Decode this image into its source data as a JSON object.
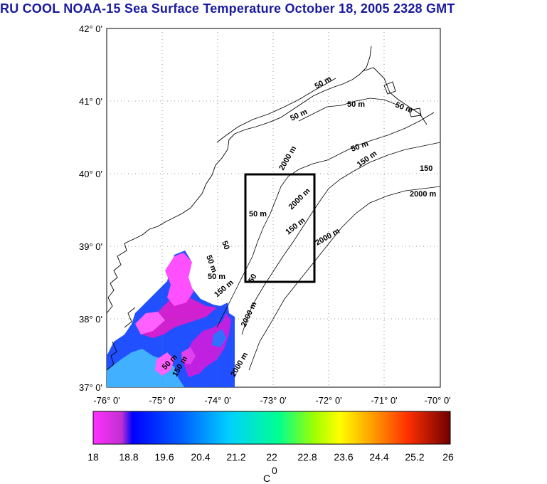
{
  "title": "RU COOL  NOAA-15 Sea Surface Temperature October 18, 2005 2328 GMT",
  "map": {
    "lat_range": [
      37,
      42
    ],
    "lon_range": [
      -76,
      -70
    ],
    "lat_ticks": [
      "37° 0'",
      "38° 0'",
      "39° 0'",
      "40° 0'",
      "41° 0'",
      "42° 0'"
    ],
    "lon_ticks": [
      "-76° 0'",
      "-75° 0'",
      "-74° 0'",
      "-73° 0'",
      "-72° 0'",
      "-71° 0'",
      "-70° 0'"
    ],
    "grid": "dotted",
    "study_box": {
      "lon": [
        -73.5,
        -72.3
      ],
      "lat": [
        38.5,
        40.0
      ]
    },
    "contour_labels": [
      "50 m",
      "150 m",
      "2000 m",
      "150",
      "2000 m",
      "50 m",
      "50 m",
      "50 m",
      "150 m",
      "2000 m",
      "2000 m",
      "50 m",
      "150 m",
      "2000 m",
      "50 m",
      "50",
      "50",
      "50 m",
      "150 m",
      "2000 m",
      "50 m",
      "50 m"
    ]
  },
  "colorbar": {
    "ticks": [
      "18",
      "18.8",
      "19.6",
      "20.4",
      "21.2",
      "22",
      "22.8",
      "23.6",
      "24.4",
      "25.2",
      "26"
    ],
    "unit": "C",
    "unit_sup": "0",
    "colors": [
      "#ff40ff",
      "#c020e0",
      "#0000ff",
      "#0080ff",
      "#00d0ff",
      "#00ff80",
      "#a0ff00",
      "#ffff00",
      "#ffa000",
      "#ff4000",
      "#c00000",
      "#800000"
    ]
  },
  "sst_colors": {
    "magenta": "#e020d0",
    "pink": "#ff60ff",
    "blue": "#2060ff",
    "cyan": "#40a0ff"
  }
}
